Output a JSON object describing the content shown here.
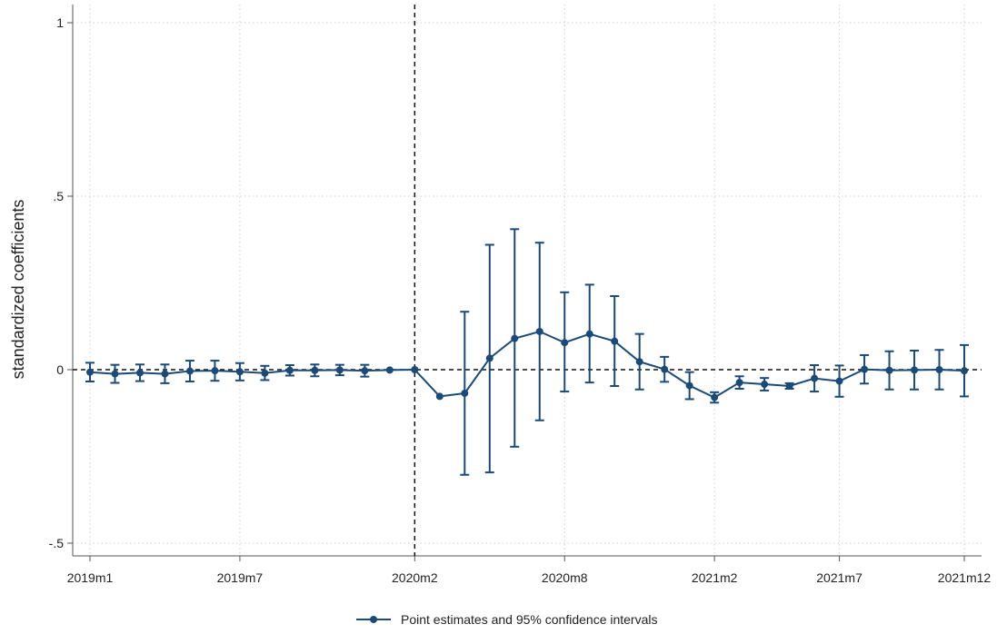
{
  "chart_data": {
    "type": "line",
    "ylabel": "standardized coefficients",
    "xlabel": "",
    "ylim": [
      -0.5,
      1
    ],
    "yticks": [
      -0.5,
      0,
      0.5,
      1
    ],
    "ytick_labels": [
      "-.5",
      "0",
      ".5",
      "1"
    ],
    "xlim": [
      "2019m1",
      "2021m12"
    ],
    "xticks": [
      "2019m1",
      "2019m7",
      "2020m2",
      "2020m8",
      "2021m2",
      "2021m7",
      "2021m12"
    ],
    "grid": true,
    "reference_lines": {
      "horizontal": 0,
      "vertical": "2020m2"
    },
    "legend_position": "bottom",
    "x": [
      "2019m1",
      "2019m2",
      "2019m3",
      "2019m4",
      "2019m5",
      "2019m6",
      "2019m7",
      "2019m8",
      "2019m9",
      "2019m10",
      "2019m11",
      "2019m12",
      "2020m1",
      "2020m2",
      "2020m3",
      "2020m4",
      "2020m5",
      "2020m6",
      "2020m7",
      "2020m8",
      "2020m9",
      "2020m10",
      "2020m11",
      "2020m12",
      "2021m1",
      "2021m2",
      "2021m3",
      "2021m4",
      "2021m5",
      "2021m6",
      "2021m7",
      "2021m8",
      "2021m9",
      "2021m10",
      "2021m11",
      "2021m12"
    ],
    "series": [
      {
        "name": "Point estimates and 95% confidence intervals",
        "color": "#1a4a7a",
        "values": [
          -0.007,
          -0.012,
          -0.009,
          -0.012,
          -0.004,
          -0.003,
          -0.006,
          -0.01,
          -0.002,
          -0.002,
          -0.001,
          -0.003,
          -0.001,
          0.0,
          -0.077,
          -0.068,
          0.033,
          0.09,
          0.11,
          0.078,
          0.103,
          0.082,
          0.023,
          0.001,
          -0.046,
          -0.08,
          -0.037,
          -0.042,
          -0.047,
          -0.025,
          -0.033,
          0.001,
          -0.002,
          -0.001,
          0.0,
          -0.003
        ],
        "ci_low": [
          -0.034,
          -0.038,
          -0.033,
          -0.039,
          -0.034,
          -0.032,
          -0.031,
          -0.03,
          -0.017,
          -0.019,
          -0.016,
          -0.02,
          -0.001,
          0.0,
          -0.077,
          -0.303,
          -0.296,
          -0.222,
          -0.146,
          -0.063,
          -0.037,
          -0.047,
          -0.057,
          -0.035,
          -0.085,
          -0.095,
          -0.055,
          -0.06,
          -0.055,
          -0.063,
          -0.078,
          -0.04,
          -0.057,
          -0.057,
          -0.057,
          -0.077
        ],
        "ci_high": [
          0.02,
          0.014,
          0.015,
          0.015,
          0.026,
          0.026,
          0.019,
          0.011,
          0.013,
          0.015,
          0.014,
          0.014,
          -0.001,
          0.0,
          -0.077,
          0.167,
          0.36,
          0.405,
          0.366,
          0.223,
          0.245,
          0.212,
          0.103,
          0.037,
          -0.007,
          -0.065,
          -0.019,
          -0.024,
          -0.039,
          0.013,
          0.012,
          0.042,
          0.053,
          0.055,
          0.057,
          0.071
        ]
      }
    ]
  }
}
